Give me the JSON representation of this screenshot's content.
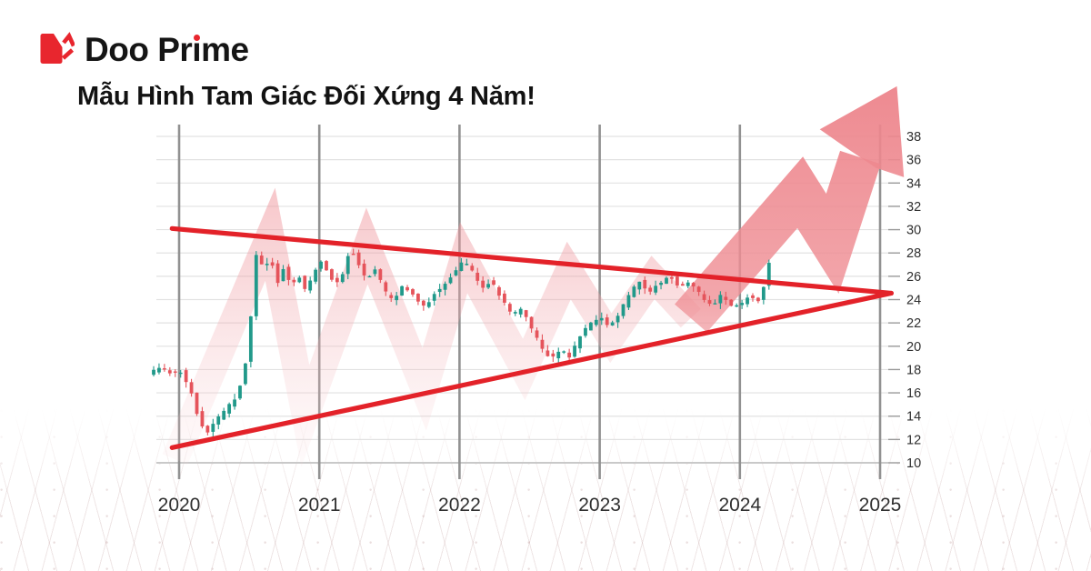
{
  "header": {
    "brand": "Doo Prime",
    "title": "Mẫu Hình Tam Giác Đối Xứng 4 Năm!"
  },
  "colors": {
    "brand_red": "#e8262e",
    "trendline": "#e32229",
    "candle_up": "#21998a",
    "candle_down": "#e5545b",
    "arrow_pink": "#ee858c",
    "grid_major": "#919191",
    "grid_minor": "#e2e2e2",
    "axis_line": "#c9c9c9",
    "tick_mark": "#9a9a9a",
    "label": "#2f2f2f"
  },
  "chart_data": {
    "type": "candlestick",
    "title": "Mẫu Hình Tam Giác Đối Xứng 4 Năm!",
    "pattern_annotation": "symmetrical-triangle-with-bullish-breakout-arrow",
    "grid": true,
    "x_axis": {
      "ticks": [
        2020,
        2021,
        2022,
        2023,
        2024,
        2025
      ],
      "range": [
        2019.78,
        2025.15
      ],
      "candles_end_year": 2024.21
    },
    "y_axis": {
      "ticks": [
        38,
        36,
        34,
        32,
        30,
        28,
        26,
        24,
        22,
        20,
        18,
        16,
        14,
        12,
        10
      ],
      "range": [
        9.6,
        38.6
      ],
      "side": "right"
    },
    "candle_interval_years": 0.0385,
    "price_path_anchors": [
      [
        2019.78,
        17.6
      ],
      [
        2019.86,
        18.1
      ],
      [
        2019.94,
        17.7
      ],
      [
        2020.02,
        17.9
      ],
      [
        2020.08,
        16.2
      ],
      [
        2020.14,
        13.8
      ],
      [
        2020.2,
        12.5
      ],
      [
        2020.26,
        13.6
      ],
      [
        2020.32,
        14.4
      ],
      [
        2020.4,
        15.5
      ],
      [
        2020.46,
        17.4
      ],
      [
        2020.5,
        21.0
      ],
      [
        2020.53,
        25.0
      ],
      [
        2020.56,
        29.2
      ],
      [
        2020.6,
        26.2
      ],
      [
        2020.65,
        27.8
      ],
      [
        2020.7,
        25.4
      ],
      [
        2020.75,
        27.0
      ],
      [
        2020.8,
        25.0
      ],
      [
        2020.85,
        26.1
      ],
      [
        2020.9,
        24.7
      ],
      [
        2020.95,
        25.9
      ],
      [
        2021.0,
        27.5
      ],
      [
        2021.06,
        26.3
      ],
      [
        2021.11,
        25.3
      ],
      [
        2021.17,
        26.4
      ],
      [
        2021.22,
        28.4
      ],
      [
        2021.28,
        27.1
      ],
      [
        2021.33,
        25.8
      ],
      [
        2021.4,
        26.6
      ],
      [
        2021.47,
        24.6
      ],
      [
        2021.53,
        23.9
      ],
      [
        2021.6,
        25.3
      ],
      [
        2021.68,
        24.2
      ],
      [
        2021.75,
        23.3
      ],
      [
        2021.82,
        24.6
      ],
      [
        2021.9,
        25.4
      ],
      [
        2021.97,
        26.4
      ],
      [
        2022.03,
        27.4
      ],
      [
        2022.1,
        26.2
      ],
      [
        2022.16,
        24.8
      ],
      [
        2022.22,
        25.7
      ],
      [
        2022.3,
        24.0
      ],
      [
        2022.38,
        22.6
      ],
      [
        2022.45,
        23.4
      ],
      [
        2022.52,
        21.3
      ],
      [
        2022.6,
        19.6
      ],
      [
        2022.66,
        18.9
      ],
      [
        2022.72,
        19.9
      ],
      [
        2022.78,
        18.9
      ],
      [
        2022.85,
        20.6
      ],
      [
        2022.92,
        21.8
      ],
      [
        2023.0,
        22.6
      ],
      [
        2023.06,
        21.7
      ],
      [
        2023.12,
        22.4
      ],
      [
        2023.2,
        24.2
      ],
      [
        2023.28,
        25.6
      ],
      [
        2023.35,
        24.6
      ],
      [
        2023.42,
        25.3
      ],
      [
        2023.5,
        26.2
      ],
      [
        2023.57,
        24.9
      ],
      [
        2023.65,
        25.6
      ],
      [
        2023.72,
        24.3
      ],
      [
        2023.8,
        23.4
      ],
      [
        2023.87,
        24.4
      ],
      [
        2023.93,
        23.6
      ],
      [
        2024.0,
        23.3
      ],
      [
        2024.06,
        24.4
      ],
      [
        2024.12,
        23.7
      ],
      [
        2024.17,
        25.1
      ],
      [
        2024.21,
        27.3
      ]
    ],
    "trendlines": {
      "upper": [
        [
          2019.95,
          30.1
        ],
        [
          2025.08,
          24.55
        ]
      ],
      "lower": [
        [
          2019.95,
          11.3
        ],
        [
          2025.08,
          24.55
        ]
      ]
    },
    "zigzag_wave": [
      [
        2019.97,
        10.3
      ],
      [
        2020.65,
        29.6
      ],
      [
        2020.9,
        14.0
      ],
      [
        2021.34,
        28.6
      ],
      [
        2021.75,
        16.3
      ],
      [
        2022.03,
        27.6
      ],
      [
        2022.46,
        18.0
      ],
      [
        2022.78,
        26.5
      ],
      [
        2023.08,
        20.7
      ],
      [
        2023.38,
        25.9
      ],
      [
        2023.65,
        22.4
      ]
    ],
    "breakout_arrow": {
      "shaft": [
        [
          2023.65,
          22.4
        ],
        [
          2024.43,
          33.2
        ],
        [
          2024.66,
          28.8
        ],
        [
          2024.86,
          36.2
        ]
      ],
      "head": [
        [
          2024.75,
          37.1
        ],
        [
          2024.57,
          38.6
        ],
        [
          2025.12,
          42.3
        ],
        [
          2025.17,
          34.5
        ],
        [
          2024.97,
          35.3
        ]
      ]
    }
  }
}
